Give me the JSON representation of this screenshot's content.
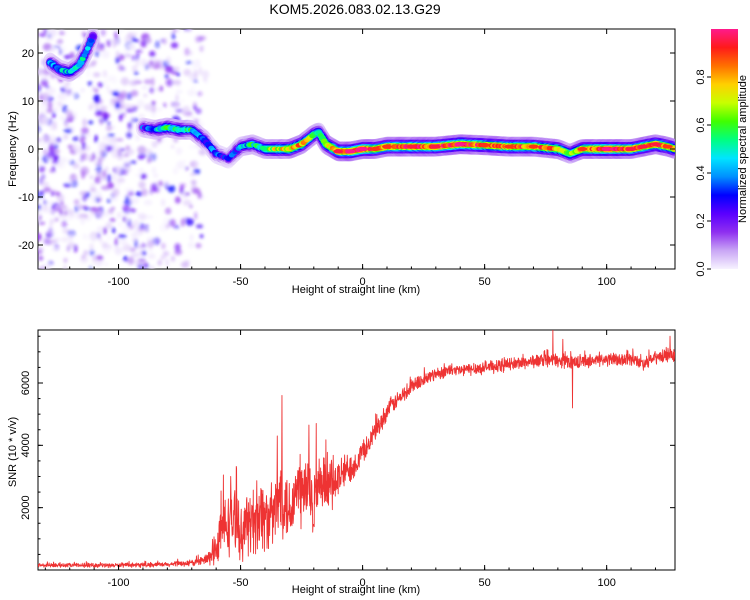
{
  "title": "KOM5.2026.083.02.13.G29",
  "chart_data": [
    {
      "type": "heatmap",
      "title": "",
      "xlabel": "Height of straight line (km)",
      "ylabel": "Frequency (Hz)",
      "xlim": [
        -133,
        128
      ],
      "ylim": [
        -25,
        25
      ],
      "xticks": [
        -100,
        -50,
        0,
        50,
        100
      ],
      "xtick_labels": [
        "-100",
        "-50",
        "0",
        "50",
        "100"
      ],
      "yticks": [
        -20,
        -10,
        0,
        10,
        20
      ],
      "ytick_labels": [
        "-20",
        "-10",
        "0",
        "10",
        "20"
      ],
      "colorbar": {
        "label": "Normalized spectral amplitude",
        "range": [
          0,
          1
        ],
        "ticks": [
          0.0,
          0.2,
          0.4,
          0.6,
          0.8
        ],
        "tick_labels": [
          "0.0",
          "0.2",
          "0.4",
          "0.6",
          "0.8"
        ],
        "colors": [
          "#f7f2ff",
          "#c9a6f5",
          "#8f2ff0",
          "#5a00ff",
          "#0000ff",
          "#0090ff",
          "#00e5ff",
          "#00ff80",
          "#40ff00",
          "#c8ff00",
          "#ffd000",
          "#ff7000",
          "#ff1a1a",
          "#ff1a8c"
        ]
      },
      "ridge": {
        "x": [
          -90,
          -85,
          -80,
          -75,
          -70,
          -65,
          -60,
          -55,
          -50,
          -45,
          -40,
          -35,
          -30,
          -25,
          -20,
          -18,
          -15,
          -10,
          -5,
          0,
          5,
          10,
          20,
          30,
          40,
          50,
          60,
          70,
          80,
          85,
          90,
          100,
          110,
          115,
          120,
          125,
          128
        ],
        "y": [
          4.5,
          4.0,
          4.5,
          4.0,
          4.0,
          2.0,
          -1.0,
          -2.0,
          0.5,
          1.0,
          0.0,
          0.0,
          0.0,
          1.0,
          3.0,
          3.5,
          1.0,
          -0.5,
          -0.5,
          0.0,
          0.0,
          0.5,
          0.5,
          0.5,
          1.0,
          0.8,
          0.5,
          0.5,
          0.0,
          -1.0,
          0.0,
          0.0,
          0.0,
          0.5,
          1.0,
          0.5,
          0.0
        ],
        "amplitude": [
          0.3,
          0.4,
          0.55,
          0.55,
          0.5,
          0.35,
          0.3,
          0.25,
          0.4,
          0.5,
          0.55,
          0.7,
          0.75,
          0.8,
          0.6,
          0.55,
          0.7,
          0.9,
          0.95,
          0.95,
          0.85,
          0.85,
          0.9,
          0.9,
          0.95,
          0.85,
          0.85,
          0.85,
          0.8,
          0.6,
          0.85,
          0.95,
          0.9,
          0.9,
          0.9,
          0.85,
          0.8
        ]
      },
      "upper_arc": {
        "x": [
          -128,
          -124,
          -120,
          -116,
          -113,
          -110
        ],
        "y": [
          18,
          16.5,
          16,
          17.5,
          20.5,
          24
        ],
        "amplitude": [
          0.35,
          0.4,
          0.45,
          0.45,
          0.4,
          0.35
        ]
      }
    },
    {
      "type": "line",
      "title": "",
      "xlabel": "Height of straight line (km)",
      "ylabel": "SNR (10 * v/v)",
      "xlim": [
        -133,
        128
      ],
      "ylim": [
        0,
        7700
      ],
      "xticks": [
        -100,
        -50,
        0,
        50,
        100
      ],
      "xtick_labels": [
        "-100",
        "-50",
        "0",
        "50",
        "100"
      ],
      "yticks": [
        2000,
        4000,
        6000
      ],
      "ytick_labels": [
        "2000",
        "4000",
        "6000"
      ],
      "series": [
        {
          "name": "SNR",
          "color": "#ee3333",
          "x": [
            -133,
            -120,
            -100,
            -80,
            -70,
            -65,
            -62,
            -60,
            -58,
            -55,
            -52,
            -50,
            -48,
            -45,
            -42,
            -40,
            -38,
            -35,
            -33,
            -32,
            -30,
            -28,
            -25,
            -22,
            -20,
            -18,
            -16,
            -14,
            -12,
            -10,
            -8,
            -5,
            -2,
            0,
            2,
            5,
            8,
            10,
            12,
            15,
            18,
            20,
            25,
            30,
            35,
            40,
            50,
            60,
            70,
            78,
            80,
            85,
            90,
            100,
            110,
            115,
            120,
            125,
            128
          ],
          "y": [
            150,
            150,
            150,
            170,
            230,
            300,
            450,
            700,
            1200,
            1500,
            1700,
            1100,
            1400,
            1600,
            1900,
            1700,
            1600,
            2000,
            2600,
            2300,
            1900,
            2400,
            2500,
            2600,
            2200,
            2400,
            2700,
            2600,
            2800,
            2900,
            3100,
            3300,
            3500,
            3800,
            4000,
            4400,
            4800,
            5100,
            5300,
            5500,
            5700,
            5900,
            6100,
            6300,
            6400,
            6400,
            6500,
            6600,
            6700,
            6750,
            6700,
            6700,
            6700,
            6750,
            6750,
            6650,
            6800,
            6900,
            6900
          ],
          "noise": [
            80,
            80,
            80,
            90,
            120,
            200,
            350,
            700,
            1000,
            1200,
            1300,
            900,
            1100,
            1300,
            1500,
            1300,
            1200,
            1400,
            1700,
            1500,
            1300,
            1400,
            1500,
            1500,
            1300,
            1100,
            1100,
            1000,
            900,
            800,
            700,
            600,
            500,
            450,
            420,
            400,
            380,
            350,
            330,
            320,
            320,
            300,
            280,
            250,
            240,
            240,
            240,
            250,
            260,
            260,
            260,
            260,
            250,
            250,
            260,
            260,
            260,
            260,
            260
          ],
          "spikes": [
            {
              "x": -33,
              "y": 5600
            },
            {
              "x": -57,
              "y": 3050
            },
            {
              "x": -54,
              "y": 3000
            },
            {
              "x": -35,
              "y": 4300
            },
            {
              "x": -22,
              "y": 4650
            },
            {
              "x": -19,
              "y": 4700
            },
            {
              "x": 78,
              "y": 7700
            },
            {
              "x": 82,
              "y": 7400
            },
            {
              "x": 86,
              "y": 5200
            },
            {
              "x": 126,
              "y": 7500
            }
          ]
        }
      ]
    }
  ]
}
